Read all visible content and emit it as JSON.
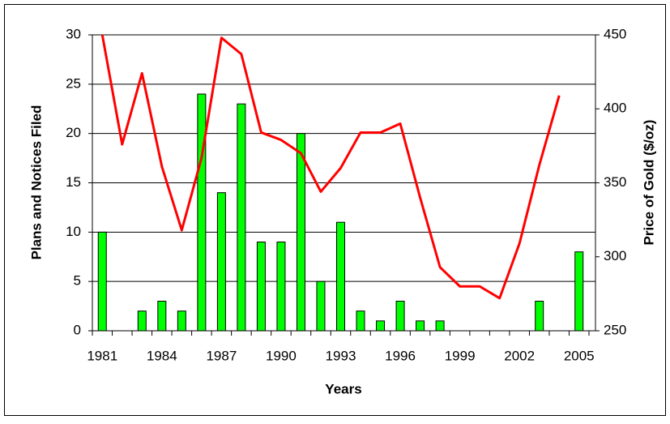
{
  "chart_data": {
    "type": "bar-line",
    "x_label": "Years",
    "y_label": "Plans and Notices Filed",
    "y2_label": "Price of Gold ($/oz)",
    "categories": [
      "1981",
      null,
      null,
      "1984",
      null,
      null,
      "1987",
      null,
      null,
      "1990",
      null,
      null,
      "1993",
      null,
      null,
      "1996",
      null,
      null,
      "1999",
      null,
      null,
      "2002",
      null,
      null,
      "2005"
    ],
    "series": [
      {
        "type": "bar",
        "color": "#00ff00",
        "values": [
          10,
          0,
          2,
          3,
          2,
          24,
          14,
          23,
          9,
          9,
          20,
          5,
          11,
          2,
          1,
          3,
          1,
          1,
          0,
          0,
          0,
          0,
          3,
          0,
          8
        ]
      },
      {
        "type": "line",
        "color": "#ff0000",
        "axis": "y2",
        "values": [
          450,
          376,
          424,
          361,
          318,
          367,
          448,
          437,
          384,
          379,
          370,
          344,
          360,
          384,
          384,
          390,
          340,
          293,
          280,
          280,
          272,
          309,
          362,
          409,
          null
        ]
      }
    ],
    "ylim": [
      0,
      30
    ],
    "yticks": [
      0,
      5,
      10,
      15,
      20,
      25,
      30
    ],
    "y2lim": [
      250,
      450
    ],
    "y2ticks": [
      250,
      300,
      350,
      400,
      450
    ],
    "grid": true
  }
}
